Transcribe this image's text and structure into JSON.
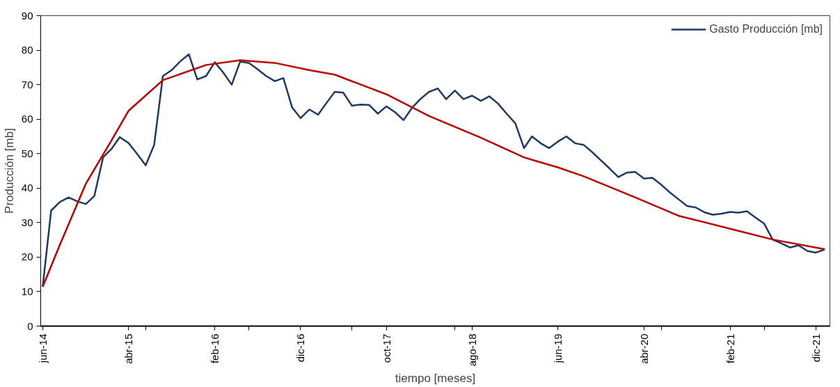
{
  "chart_data": {
    "type": "line",
    "xlabel": "tiempo [meses]",
    "ylabel": "Producción [mb]",
    "xlim": [
      "2014-05-25",
      "2022-01-20"
    ],
    "ylim": [
      0,
      90
    ],
    "xticks": [
      {
        "value": "2014-06",
        "label": "jun-14"
      },
      {
        "value": "2015-04",
        "label": "abr-15"
      },
      {
        "value": "2016-02",
        "label": "feb-16"
      },
      {
        "value": "2016-12",
        "label": "dic-16"
      },
      {
        "value": "2017-10",
        "label": "oct-17"
      },
      {
        "value": "2018-08",
        "label": "ago-18"
      },
      {
        "value": "2019-06",
        "label": "jun-19"
      },
      {
        "value": "2020-04",
        "label": "abr-20"
      },
      {
        "value": "2021-02",
        "label": "feb-21"
      },
      {
        "value": "2021-12",
        "label": "dic-21"
      },
      {
        "value": "2015-06",
        "label": null
      },
      {
        "value": "2016-06",
        "label": null
      },
      {
        "value": "2017-06",
        "label": null
      },
      {
        "value": "2018-06",
        "label": null
      },
      {
        "value": "2020-06",
        "label": null
      },
      {
        "value": "2021-06",
        "label": null
      }
    ],
    "yticks": [
      0,
      10,
      20,
      30,
      40,
      50,
      60,
      70,
      80,
      90
    ],
    "grid": false,
    "legend": "top right",
    "marker": "none",
    "line_style": "solid",
    "series": [
      {
        "name": "Gasto Producción [mb]",
        "color": "#1f3864",
        "x": [
          "2014-06",
          "2014-07",
          "2014-08",
          "2014-09",
          "2014-10",
          "2014-11",
          "2014-12",
          "2015-01",
          "2015-02",
          "2015-03",
          "2015-04",
          "2015-05",
          "2015-06",
          "2015-07",
          "2015-08",
          "2015-09",
          "2015-10",
          "2015-11",
          "2015-12",
          "2016-01",
          "2016-02",
          "2016-03",
          "2016-04",
          "2016-05",
          "2016-06",
          "2016-07",
          "2016-08",
          "2016-09",
          "2016-10",
          "2016-11",
          "2016-12",
          "2017-01",
          "2017-02",
          "2017-03",
          "2017-04",
          "2017-05",
          "2017-06",
          "2017-07",
          "2017-08",
          "2017-09",
          "2017-10",
          "2017-11",
          "2017-12",
          "2018-01",
          "2018-02",
          "2018-03",
          "2018-04",
          "2018-05",
          "2018-06",
          "2018-07",
          "2018-08",
          "2018-09",
          "2018-10",
          "2018-11",
          "2018-12",
          "2019-01",
          "2019-02",
          "2019-03",
          "2019-04",
          "2019-05",
          "2019-06",
          "2019-07",
          "2019-08",
          "2019-09",
          "2019-10",
          "2019-11",
          "2019-12",
          "2020-01",
          "2020-02",
          "2020-03",
          "2020-04",
          "2020-05",
          "2020-06",
          "2020-07",
          "2020-08",
          "2020-09",
          "2020-10",
          "2020-11",
          "2020-12",
          "2021-01",
          "2021-02",
          "2021-03",
          "2021-04",
          "2021-05",
          "2021-06",
          "2021-07",
          "2021-08",
          "2021-09",
          "2021-10",
          "2021-11",
          "2021-12",
          "2022-01"
        ],
        "values": [
          11.4,
          33.5,
          36.0,
          37.3,
          36.2,
          35.4,
          37.7,
          48.9,
          51.5,
          54.8,
          53.1,
          50.0,
          46.6,
          52.5,
          72.5,
          74.2,
          76.7,
          78.8,
          71.5,
          72.5,
          76.5,
          73.6,
          70.0,
          76.7,
          76.3,
          74.5,
          72.5,
          71.0,
          71.9,
          63.4,
          60.3,
          62.8,
          61.3,
          64.5,
          67.9,
          67.7,
          63.9,
          64.2,
          64.1,
          61.6,
          63.7,
          62.0,
          59.7,
          63.4,
          66.0,
          67.9,
          68.9,
          65.8,
          68.3,
          65.8,
          66.8,
          65.3,
          66.6,
          64.5,
          61.6,
          58.8,
          51.6,
          55.0,
          53.0,
          51.6,
          53.5,
          55.0,
          53.0,
          52.5,
          50.4,
          48.0,
          45.7,
          43.2,
          44.5,
          44.7,
          42.8,
          43.0,
          41.0,
          38.8,
          36.8,
          34.8,
          34.4,
          33.0,
          32.3,
          32.6,
          33.1,
          32.9,
          33.3,
          31.5,
          29.7,
          25.1,
          24.0,
          22.8,
          23.4,
          21.8,
          21.3,
          22.2
        ]
      },
      {
        "color": "#c00000",
        "x": [
          "2014-06",
          "2014-08",
          "2014-11",
          "2015-02",
          "2015-04",
          "2015-08",
          "2016-01",
          "2016-05",
          "2016-09",
          "2017-01",
          "2017-04",
          "2017-10",
          "2018-03",
          "2018-09",
          "2019-02",
          "2019-06",
          "2019-09",
          "2020-03",
          "2020-08",
          "2021-02",
          "2021-07",
          "2022-01"
        ],
        "values": [
          11.4,
          23.6,
          41.3,
          54.0,
          62.4,
          71.3,
          75.7,
          77.1,
          76.3,
          74.2,
          72.9,
          67.2,
          60.9,
          54.6,
          48.9,
          46.0,
          43.4,
          37.3,
          32.0,
          28.2,
          25.1,
          22.3
        ]
      }
    ]
  }
}
